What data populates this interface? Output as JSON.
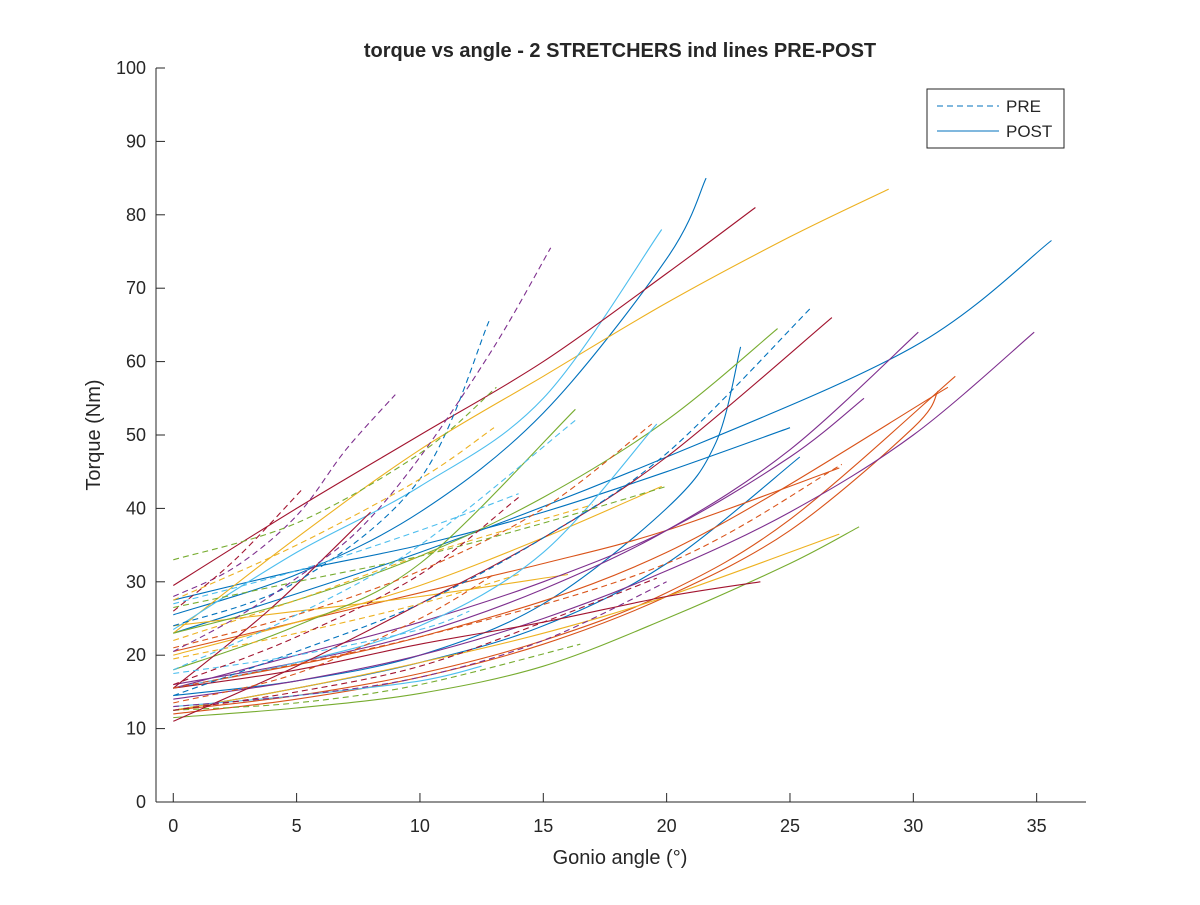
{
  "chart_data": {
    "type": "line",
    "title": "torque vs angle - 2 STRETCHERS ind lines PRE-POST",
    "xlabel": "Gonio angle (°)",
    "ylabel": "Torque (Nm)",
    "xlim": [
      -0.7,
      37
    ],
    "ylim": [
      0,
      100
    ],
    "xticks": [
      "0",
      "5",
      "10",
      "15",
      "20",
      "25",
      "30",
      "35"
    ],
    "yticks": [
      "0",
      "10",
      "20",
      "30",
      "40",
      "50",
      "60",
      "70",
      "80",
      "90",
      "100"
    ],
    "legend": {
      "position": "top-right",
      "entries": [
        {
          "label": "PRE",
          "style": "dashed",
          "color": "#0072BD"
        },
        {
          "label": "POST",
          "style": "solid",
          "color": "#0072BD"
        }
      ]
    },
    "grid": false,
    "colors": [
      "#0072BD",
      "#D95319",
      "#EDB120",
      "#7E2F8E",
      "#77AC30",
      "#4DBEEE",
      "#A2142F"
    ],
    "series": [
      {
        "style": "post",
        "color": "#0072BD",
        "x": [
          0,
          5,
          10,
          15,
          20,
          22,
          23
        ],
        "y": [
          14.5,
          16.5,
          20,
          27,
          40,
          49,
          62
        ]
      },
      {
        "style": "post",
        "color": "#0072BD",
        "x": [
          0,
          10,
          20,
          30,
          35.6
        ],
        "y": [
          23,
          34,
          47,
          62,
          76.5
        ]
      },
      {
        "style": "post",
        "color": "#0072BD",
        "x": [
          0,
          5,
          10,
          15,
          20,
          21.6
        ],
        "y": [
          25.5,
          31,
          39.5,
          53,
          74,
          85
        ]
      },
      {
        "style": "post",
        "color": "#0072BD",
        "x": [
          0,
          5,
          10,
          15,
          20,
          25.4
        ],
        "y": [
          12.5,
          15.5,
          19,
          24,
          32.5,
          47
        ]
      },
      {
        "style": "post",
        "color": "#0072BD",
        "x": [
          0,
          5,
          10,
          15,
          20,
          25
        ],
        "y": [
          27.5,
          31.5,
          35,
          39.5,
          45,
          51
        ]
      },
      {
        "style": "post",
        "color": "#D95319",
        "x": [
          0,
          5,
          10,
          15,
          20,
          25,
          31.7
        ],
        "y": [
          12.5,
          14.5,
          17.5,
          22,
          28.5,
          38.5,
          58
        ]
      },
      {
        "style": "post",
        "color": "#D95319",
        "x": [
          0,
          10,
          20,
          31.4
        ],
        "y": [
          15.5,
          22.5,
          34,
          56.5
        ]
      },
      {
        "style": "post",
        "color": "#D95319",
        "x": [
          0,
          5,
          10,
          15,
          20,
          27
        ],
        "y": [
          20.5,
          24.5,
          28.5,
          32.5,
          37,
          45.5
        ]
      },
      {
        "style": "post",
        "color": "#D95319",
        "x": [
          0,
          5,
          10,
          15,
          20,
          25,
          30,
          31
        ],
        "y": [
          12,
          14,
          17,
          21.5,
          28,
          37,
          51,
          56
        ]
      },
      {
        "style": "post",
        "color": "#EDB120",
        "x": [
          0,
          5,
          10,
          15,
          20,
          25,
          29
        ],
        "y": [
          23,
          36,
          48,
          58,
          68,
          77,
          83.5
        ]
      },
      {
        "style": "post",
        "color": "#EDB120",
        "x": [
          0,
          5,
          10,
          15,
          20,
          27
        ],
        "y": [
          12.5,
          15.5,
          19,
          23,
          28,
          36.5
        ]
      },
      {
        "style": "post",
        "color": "#EDB120",
        "x": [
          0,
          5,
          10,
          15,
          19.8
        ],
        "y": [
          20,
          24.5,
          29.5,
          36,
          43
        ]
      },
      {
        "style": "post",
        "color": "#EDB120",
        "x": [
          0,
          5,
          10,
          16
        ],
        "y": [
          24,
          26,
          28,
          31
        ]
      },
      {
        "style": "post",
        "color": "#7E2F8E",
        "x": [
          0,
          5,
          10,
          15,
          20,
          25,
          30.2
        ],
        "y": [
          16,
          19,
          23,
          29,
          37,
          48,
          64
        ]
      },
      {
        "style": "post",
        "color": "#7E2F8E",
        "x": [
          0,
          5,
          10,
          15,
          20,
          25,
          30,
          34.9
        ],
        "y": [
          14,
          16.5,
          20,
          25,
          31.5,
          39.5,
          50,
          64
        ]
      },
      {
        "style": "post",
        "color": "#7E2F8E",
        "x": [
          0,
          5,
          10,
          15,
          20,
          25,
          28
        ],
        "y": [
          15.5,
          20,
          24.5,
          30,
          37,
          47,
          55
        ]
      },
      {
        "style": "post",
        "color": "#77AC30",
        "x": [
          0,
          5,
          10,
          15,
          20,
          25,
          27.8
        ],
        "y": [
          11.5,
          12.8,
          14.8,
          18.5,
          25,
          32.5,
          37.5
        ]
      },
      {
        "style": "post",
        "color": "#77AC30",
        "x": [
          0,
          5,
          10,
          15,
          20,
          24.5
        ],
        "y": [
          23,
          27.5,
          33.5,
          41.5,
          52,
          64.5
        ]
      },
      {
        "style": "post",
        "color": "#77AC30",
        "x": [
          0,
          5,
          10,
          16.3
        ],
        "y": [
          18,
          24,
          32.5,
          53.5
        ]
      },
      {
        "style": "post",
        "color": "#4DBEEE",
        "x": [
          0,
          5,
          10,
          15,
          19.8
        ],
        "y": [
          23.5,
          34,
          43,
          55,
          78
        ]
      },
      {
        "style": "post",
        "color": "#4DBEEE",
        "x": [
          0,
          5,
          10,
          15,
          19.6
        ],
        "y": [
          15.5,
          19,
          24,
          34,
          51.5
        ]
      },
      {
        "style": "post",
        "color": "#4DBEEE",
        "x": [
          0,
          5,
          10,
          12.5
        ],
        "y": [
          13,
          14.5,
          16.5,
          18.5
        ]
      },
      {
        "style": "post",
        "color": "#A2142F",
        "x": [
          0,
          5,
          10,
          15,
          20,
          23.6
        ],
        "y": [
          29.5,
          40,
          50,
          60,
          72,
          81
        ]
      },
      {
        "style": "post",
        "color": "#A2142F",
        "x": [
          0,
          5,
          10,
          15,
          20,
          26.7
        ],
        "y": [
          11,
          18.5,
          27,
          36,
          47,
          66
        ]
      },
      {
        "style": "post",
        "color": "#A2142F",
        "x": [
          0,
          5,
          10,
          15,
          20,
          23.8
        ],
        "y": [
          15.5,
          18,
          21.5,
          24.5,
          28,
          30
        ]
      },
      {
        "style": "post",
        "color": "#A2142F",
        "x": [
          0,
          4,
          8
        ],
        "y": [
          15.5,
          26.5,
          39.5
        ]
      },
      {
        "style": "pre",
        "color": "#0072BD",
        "x": [
          0,
          5,
          10,
          12.8
        ],
        "y": [
          24,
          30,
          44,
          65.5
        ]
      },
      {
        "style": "pre",
        "color": "#0072BD",
        "x": [
          0,
          5,
          10,
          15,
          20,
          25.9
        ],
        "y": [
          14.5,
          20.5,
          27,
          36,
          47.5,
          67.5
        ]
      },
      {
        "style": "pre",
        "color": "#D95319",
        "x": [
          0,
          5,
          10,
          15,
          19.4
        ],
        "y": [
          21,
          25.5,
          31.5,
          40,
          51.5
        ]
      },
      {
        "style": "pre",
        "color": "#D95319",
        "x": [
          0,
          5,
          10,
          13
        ],
        "y": [
          13.5,
          17.5,
          25,
          31
        ]
      },
      {
        "style": "pre",
        "color": "#D95319",
        "x": [
          0,
          10,
          20,
          27.1
        ],
        "y": [
          15.5,
          22.5,
          32.5,
          46
        ]
      },
      {
        "style": "pre",
        "color": "#EDB120",
        "x": [
          0,
          5,
          10,
          13
        ],
        "y": [
          27.5,
          35,
          44,
          51
        ]
      },
      {
        "style": "pre",
        "color": "#EDB120",
        "x": [
          0,
          5,
          10,
          17
        ],
        "y": [
          22,
          27.5,
          33.5,
          40.5
        ]
      },
      {
        "style": "pre",
        "color": "#EDB120",
        "x": [
          0,
          5,
          10,
          14
        ],
        "y": [
          19.5,
          23,
          27,
          31
        ]
      },
      {
        "style": "pre",
        "color": "#7E2F8E",
        "x": [
          0,
          2.5,
          5,
          7.5,
          10,
          13,
          15.3
        ],
        "y": [
          20.5,
          25,
          30.5,
          37,
          47,
          62,
          75.5
        ]
      },
      {
        "style": "pre",
        "color": "#7E2F8E",
        "x": [
          0,
          2.5,
          5,
          7,
          9
        ],
        "y": [
          28,
          32,
          39,
          48,
          55.5
        ]
      },
      {
        "style": "pre",
        "color": "#7E2F8E",
        "x": [
          0,
          5,
          10,
          15,
          20
        ],
        "y": [
          13,
          14.5,
          17,
          22,
          30
        ]
      },
      {
        "style": "pre",
        "color": "#77AC30",
        "x": [
          0,
          5,
          10,
          13.1
        ],
        "y": [
          33,
          38,
          47.5,
          56.5
        ]
      },
      {
        "style": "pre",
        "color": "#77AC30",
        "x": [
          0,
          5,
          10,
          16.5
        ],
        "y": [
          12.5,
          13.5,
          16,
          21.5
        ]
      },
      {
        "style": "pre",
        "color": "#77AC30",
        "x": [
          0,
          5,
          10,
          15,
          20
        ],
        "y": [
          26.5,
          30,
          33.5,
          38,
          43
        ]
      },
      {
        "style": "pre",
        "color": "#4DBEEE",
        "x": [
          0,
          5,
          10,
          16.3
        ],
        "y": [
          18,
          25.5,
          35,
          52
        ]
      },
      {
        "style": "pre",
        "color": "#4DBEEE",
        "x": [
          0,
          5,
          10,
          12
        ],
        "y": [
          17.5,
          20,
          23.5,
          26
        ]
      },
      {
        "style": "pre",
        "color": "#4DBEEE",
        "x": [
          0,
          5,
          10,
          14
        ],
        "y": [
          27,
          31.5,
          37,
          42
        ]
      },
      {
        "style": "pre",
        "color": "#A2142F",
        "x": [
          0,
          2.5,
          5.2
        ],
        "y": [
          26,
          33,
          42.5
        ]
      },
      {
        "style": "pre",
        "color": "#A2142F",
        "x": [
          0,
          5,
          10,
          15,
          19.6
        ],
        "y": [
          12.5,
          15,
          18.5,
          24.5,
          30.5
        ]
      },
      {
        "style": "pre",
        "color": "#A2142F",
        "x": [
          0,
          5,
          10,
          14
        ],
        "y": [
          16,
          22.5,
          31,
          41.5
        ]
      }
    ]
  }
}
